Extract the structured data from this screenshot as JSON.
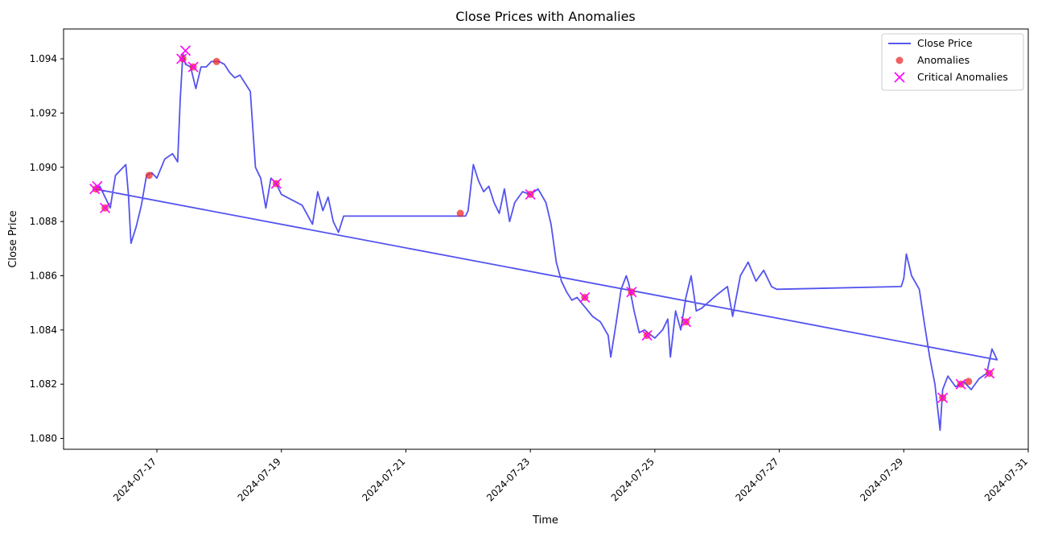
{
  "chart_data": {
    "type": "line",
    "title": "Close Prices with Anomalies",
    "xlabel": "Time",
    "ylabel": "Close Price",
    "xlim": [
      "2024-07-15T12:00",
      "2024-07-31T00:00"
    ],
    "ylim": [
      1.0796,
      1.0951
    ],
    "x_ticks": [
      "2024-07-17",
      "2024-07-19",
      "2024-07-21",
      "2024-07-23",
      "2024-07-25",
      "2024-07-27",
      "2024-07-29",
      "2024-07-31"
    ],
    "y_ticks": [
      "1.080",
      "1.082",
      "1.084",
      "1.086",
      "1.088",
      "1.090",
      "1.092",
      "1.094"
    ],
    "legend_position": "top-right",
    "grid": false,
    "colors": {
      "line": "#4040ee",
      "anomaly": "#ee2a2a",
      "critical": "#ff00ff"
    },
    "series": [
      {
        "name": "Close Price",
        "style": "line",
        "points": [
          [
            "2024-07-16T00:00",
            1.0892
          ],
          [
            "2024-07-16T02:00",
            1.0893
          ],
          [
            "2024-07-16T04:00",
            1.0889
          ],
          [
            "2024-07-16T06:00",
            1.0885
          ],
          [
            "2024-07-16T08:00",
            1.0897
          ],
          [
            "2024-07-16T10:00",
            1.0899
          ],
          [
            "2024-07-16T12:00",
            1.0901
          ],
          [
            "2024-07-16T13:00",
            1.089
          ],
          [
            "2024-07-16T14:00",
            1.0872
          ],
          [
            "2024-07-16T16:00",
            1.0878
          ],
          [
            "2024-07-16T18:00",
            1.0886
          ],
          [
            "2024-07-16T20:00",
            1.0897
          ],
          [
            "2024-07-16T22:00",
            1.0898
          ],
          [
            "2024-07-17T00:00",
            1.0896
          ],
          [
            "2024-07-17T03:00",
            1.0903
          ],
          [
            "2024-07-17T06:00",
            1.0905
          ],
          [
            "2024-07-17T08:00",
            1.0902
          ],
          [
            "2024-07-17T09:00",
            1.0925
          ],
          [
            "2024-07-17T10:00",
            1.0942
          ],
          [
            "2024-07-17T11:00",
            1.0938
          ],
          [
            "2024-07-17T13:00",
            1.0937
          ],
          [
            "2024-07-17T15:00",
            1.0929
          ],
          [
            "2024-07-17T17:00",
            1.0937
          ],
          [
            "2024-07-17T19:00",
            1.0937
          ],
          [
            "2024-07-17T21:00",
            1.0939
          ],
          [
            "2024-07-18T00:00",
            1.0939
          ],
          [
            "2024-07-18T02:00",
            1.0938
          ],
          [
            "2024-07-18T04:00",
            1.0935
          ],
          [
            "2024-07-18T06:00",
            1.0933
          ],
          [
            "2024-07-18T08:00",
            1.0934
          ],
          [
            "2024-07-18T10:00",
            1.0931
          ],
          [
            "2024-07-18T12:00",
            1.0928
          ],
          [
            "2024-07-18T14:00",
            1.09
          ],
          [
            "2024-07-18T16:00",
            1.0896
          ],
          [
            "2024-07-18T18:00",
            1.0885
          ],
          [
            "2024-07-18T20:00",
            1.0896
          ],
          [
            "2024-07-18T22:00",
            1.0894
          ],
          [
            "2024-07-19T00:00",
            1.089
          ],
          [
            "2024-07-19T04:00",
            1.0888
          ],
          [
            "2024-07-19T08:00",
            1.0886
          ],
          [
            "2024-07-19T12:00",
            1.0879
          ],
          [
            "2024-07-19T14:00",
            1.0891
          ],
          [
            "2024-07-19T16:00",
            1.0884
          ],
          [
            "2024-07-19T18:00",
            1.0889
          ],
          [
            "2024-07-19T20:00",
            1.088
          ],
          [
            "2024-07-19T22:00",
            1.0876
          ],
          [
            "2024-07-20T00:00",
            1.0882
          ],
          [
            "2024-07-21T23:00",
            1.0882
          ],
          [
            "2024-07-22T00:00",
            1.0884
          ],
          [
            "2024-07-22T02:00",
            1.0901
          ],
          [
            "2024-07-22T04:00",
            1.0895
          ],
          [
            "2024-07-22T06:00",
            1.0891
          ],
          [
            "2024-07-22T08:00",
            1.0893
          ],
          [
            "2024-07-22T10:00",
            1.0887
          ],
          [
            "2024-07-22T12:00",
            1.0883
          ],
          [
            "2024-07-22T14:00",
            1.0892
          ],
          [
            "2024-07-22T16:00",
            1.088
          ],
          [
            "2024-07-22T18:00",
            1.0887
          ],
          [
            "2024-07-22T21:00",
            1.0891
          ],
          [
            "2024-07-23T00:00",
            1.089
          ],
          [
            "2024-07-23T03:00",
            1.0892
          ],
          [
            "2024-07-23T06:00",
            1.0887
          ],
          [
            "2024-07-23T08:00",
            1.0879
          ],
          [
            "2024-07-23T10:00",
            1.0865
          ],
          [
            "2024-07-23T12:00",
            1.0858
          ],
          [
            "2024-07-23T14:00",
            1.0854
          ],
          [
            "2024-07-23T16:00",
            1.0851
          ],
          [
            "2024-07-23T18:00",
            1.0852
          ],
          [
            "2024-07-24T00:00",
            1.0845
          ],
          [
            "2024-07-24T03:00",
            1.0843
          ],
          [
            "2024-07-24T06:00",
            1.0838
          ],
          [
            "2024-07-24T07:00",
            1.083
          ],
          [
            "2024-07-24T09:00",
            1.0842
          ],
          [
            "2024-07-24T11:00",
            1.0855
          ],
          [
            "2024-07-24T13:00",
            1.086
          ],
          [
            "2024-07-24T14:00",
            1.0857
          ],
          [
            "2024-07-24T16:00",
            1.0847
          ],
          [
            "2024-07-24T18:00",
            1.0839
          ],
          [
            "2024-07-24T20:00",
            1.084
          ],
          [
            "2024-07-25T00:00",
            1.0837
          ],
          [
            "2024-07-25T03:00",
            1.084
          ],
          [
            "2024-07-25T05:00",
            1.0844
          ],
          [
            "2024-07-25T06:00",
            1.083
          ],
          [
            "2024-07-25T08:00",
            1.0847
          ],
          [
            "2024-07-25T10:00",
            1.084
          ],
          [
            "2024-07-25T12:00",
            1.0852
          ],
          [
            "2024-07-25T14:00",
            1.086
          ],
          [
            "2024-07-25T16:00",
            1.0847
          ],
          [
            "2024-07-25T18:00",
            1.0848
          ],
          [
            "2024-07-26T00:00",
            1.0853
          ],
          [
            "2024-07-26T04:00",
            1.0856
          ],
          [
            "2024-07-26T06:00",
            1.0845
          ],
          [
            "2024-07-26T09:00",
            1.086
          ],
          [
            "2024-07-26T12:00",
            1.0865
          ],
          [
            "2024-07-26T15:00",
            1.0858
          ],
          [
            "2024-07-26T18:00",
            1.0862
          ],
          [
            "2024-07-26T21:00",
            1.0856
          ],
          [
            "2024-07-26T23:00",
            1.0855
          ],
          [
            "2024-07-28T23:00",
            1.0856
          ],
          [
            "2024-07-29T00:00",
            1.0859
          ],
          [
            "2024-07-29T01:00",
            1.0868
          ],
          [
            "2024-07-29T03:00",
            1.086
          ],
          [
            "2024-07-29T06:00",
            1.0855
          ],
          [
            "2024-07-29T08:00",
            1.0842
          ],
          [
            "2024-07-29T10:00",
            1.083
          ],
          [
            "2024-07-29T12:00",
            1.082
          ],
          [
            "2024-07-29T14:00",
            1.0803
          ],
          [
            "2024-07-29T15:00",
            1.0818
          ],
          [
            "2024-07-29T17:00",
            1.0823
          ],
          [
            "2024-07-29T20:00",
            1.0819
          ],
          [
            "2024-07-29T23:00",
            1.0821
          ],
          [
            "2024-07-30T02:00",
            1.0818
          ],
          [
            "2024-07-30T05:00",
            1.0822
          ],
          [
            "2024-07-30T08:00",
            1.0824
          ],
          [
            "2024-07-30T10:00",
            1.0833
          ],
          [
            "2024-07-30T12:00",
            1.0829
          ],
          [
            "2024-07-16T00:00",
            1.0892
          ]
        ]
      },
      {
        "name": "Anomalies",
        "style": "scatter",
        "marker": "circle",
        "points": [
          [
            "2024-07-16T00:30",
            1.0892
          ],
          [
            "2024-07-16T04:00",
            1.0885
          ],
          [
            "2024-07-16T21:00",
            1.0897
          ],
          [
            "2024-07-17T10:00",
            1.094
          ],
          [
            "2024-07-17T14:00",
            1.0937
          ],
          [
            "2024-07-17T23:00",
            1.0939
          ],
          [
            "2024-07-18T22:00",
            1.0894
          ],
          [
            "2024-07-21T21:00",
            1.0883
          ],
          [
            "2024-07-23T00:00",
            1.089
          ],
          [
            "2024-07-23T21:00",
            1.0852
          ],
          [
            "2024-07-24T15:00",
            1.0854
          ],
          [
            "2024-07-24T21:00",
            1.0838
          ],
          [
            "2024-07-25T12:00",
            1.0843
          ],
          [
            "2024-07-29T15:00",
            1.0815
          ],
          [
            "2024-07-29T22:00",
            1.082
          ],
          [
            "2024-07-30T01:00",
            1.0821
          ],
          [
            "2024-07-30T09:00",
            1.0824
          ]
        ]
      },
      {
        "name": "Critical Anomalies",
        "style": "scatter",
        "marker": "x",
        "points": [
          [
            "2024-07-16T00:00",
            1.0892
          ],
          [
            "2024-07-16T01:00",
            1.0893
          ],
          [
            "2024-07-16T04:00",
            1.0885
          ],
          [
            "2024-07-17T09:30",
            1.094
          ],
          [
            "2024-07-17T11:00",
            1.0943
          ],
          [
            "2024-07-17T14:00",
            1.0937
          ],
          [
            "2024-07-18T22:00",
            1.0894
          ],
          [
            "2024-07-23T00:00",
            1.089
          ],
          [
            "2024-07-23T21:00",
            1.0852
          ],
          [
            "2024-07-24T15:00",
            1.0854
          ],
          [
            "2024-07-24T21:00",
            1.0838
          ],
          [
            "2024-07-25T12:00",
            1.0843
          ],
          [
            "2024-07-29T15:00",
            1.0815
          ],
          [
            "2024-07-29T22:00",
            1.082
          ],
          [
            "2024-07-30T09:00",
            1.0824
          ]
        ]
      }
    ]
  }
}
